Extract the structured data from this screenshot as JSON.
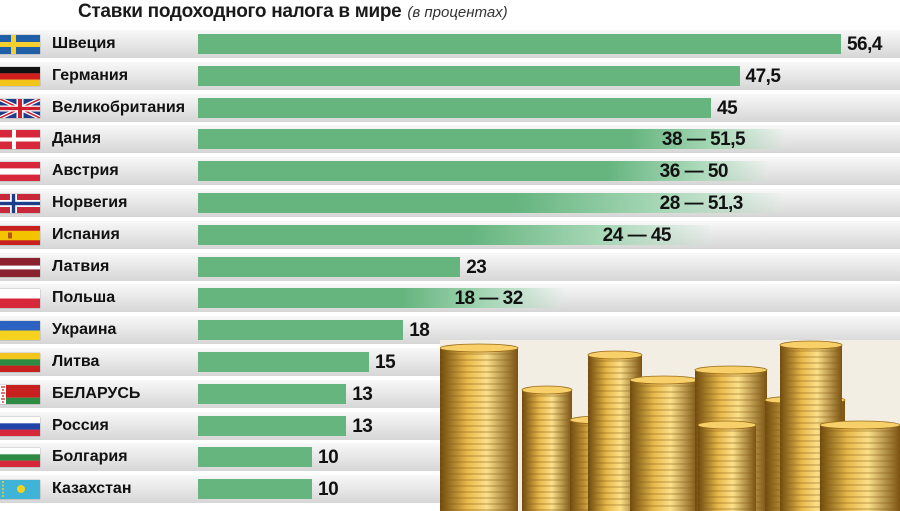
{
  "chart_data": {
    "type": "bar",
    "orientation": "horizontal",
    "title": "Ставки подоходного налога в мире",
    "subtitle": "(в процентах)",
    "xlim": [
      0,
      60
    ],
    "categories": [
      "Швеция",
      "Германия",
      "Великобритания",
      "Дания",
      "Австрия",
      "Норвегия",
      "Испания",
      "Латвия",
      "Польша",
      "Украина",
      "Литва",
      "БЕЛАРУСЬ",
      "Россия",
      "Болгария",
      "Казахстан"
    ],
    "min_values": [
      56.4,
      47.5,
      45,
      38,
      36,
      28,
      24,
      23,
      18,
      18,
      15,
      13,
      13,
      10,
      10
    ],
    "max_values": [
      56.4,
      47.5,
      45,
      51.5,
      50,
      51.3,
      45,
      23,
      32,
      18,
      15,
      13,
      13,
      10,
      10
    ],
    "labels": [
      "56,4",
      "47,5",
      "45",
      "38 — 51,5",
      "36 — 50",
      "28 — 51,3",
      "24 — 45",
      "23",
      "18 — 32",
      "18",
      "15",
      "13",
      "13",
      "10",
      "10"
    ],
    "flags": [
      "sweden-flag",
      "germany-flag",
      "uk-flag",
      "denmark-flag",
      "austria-flag",
      "norway-flag",
      "spain-flag",
      "latvia-flag",
      "poland-flag",
      "ukraine-flag",
      "lithuania-flag",
      "belarus-flag",
      "russia-flag",
      "bulgaria-flag",
      "kazakhstan-flag"
    ],
    "colors": {
      "bar": "#66b57f",
      "text": "#111111"
    }
  }
}
